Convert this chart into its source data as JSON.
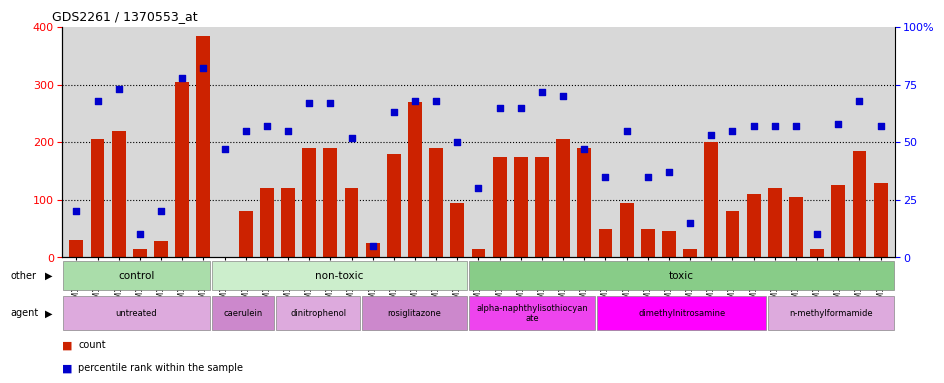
{
  "title": "GDS2261 / 1370553_at",
  "samples": [
    "GSM127079",
    "GSM127080",
    "GSM127081",
    "GSM127082",
    "GSM127083",
    "GSM127084",
    "GSM127085",
    "GSM127086",
    "GSM127087",
    "GSM127054",
    "GSM127055",
    "GSM127056",
    "GSM127057",
    "GSM127058",
    "GSM127064",
    "GSM127065",
    "GSM127066",
    "GSM127067",
    "GSM127068",
    "GSM127074",
    "GSM127075",
    "GSM127076",
    "GSM127077",
    "GSM127078",
    "GSM127049",
    "GSM127050",
    "GSM127051",
    "GSM127052",
    "GSM127053",
    "GSM127059",
    "GSM127060",
    "GSM127061",
    "GSM127062",
    "GSM127063",
    "GSM127069",
    "GSM127070",
    "GSM127071",
    "GSM127072",
    "GSM127073"
  ],
  "counts": [
    30,
    205,
    220,
    15,
    28,
    305,
    385,
    0,
    80,
    120,
    120,
    190,
    190,
    120,
    25,
    180,
    270,
    190,
    95,
    15,
    175,
    175,
    175,
    205,
    190,
    50,
    95,
    50,
    45,
    15,
    200,
    80,
    110,
    120,
    105,
    15,
    125,
    185,
    130
  ],
  "percentiles": [
    20,
    68,
    73,
    10,
    20,
    78,
    82,
    47,
    55,
    57,
    55,
    67,
    67,
    52,
    5,
    63,
    68,
    68,
    50,
    30,
    65,
    65,
    72,
    70,
    47,
    35,
    55,
    35,
    37,
    15,
    53,
    55,
    57,
    57,
    57,
    10,
    58,
    68,
    57
  ],
  "ylim_left": [
    0,
    400
  ],
  "ylim_right": [
    0,
    100
  ],
  "bar_color": "#cc2200",
  "dot_color": "#0000cc",
  "bg_color": "#d8d8d8",
  "other_groups": [
    {
      "label": "control",
      "start": 0,
      "end": 7,
      "color": "#aaddaa"
    },
    {
      "label": "non-toxic",
      "start": 7,
      "end": 19,
      "color": "#cceecc"
    },
    {
      "label": "toxic",
      "start": 19,
      "end": 39,
      "color": "#88cc88"
    }
  ],
  "agent_groups": [
    {
      "label": "untreated",
      "start": 0,
      "end": 7,
      "color": "#ddaadd"
    },
    {
      "label": "caerulein",
      "start": 7,
      "end": 10,
      "color": "#cc88cc"
    },
    {
      "label": "dinitrophenol",
      "start": 10,
      "end": 14,
      "color": "#ddaadd"
    },
    {
      "label": "rosiglitazone",
      "start": 14,
      "end": 19,
      "color": "#cc88cc"
    },
    {
      "label": "alpha-naphthylisothiocyan\nate",
      "start": 19,
      "end": 25,
      "color": "#ee44ee"
    },
    {
      "label": "dimethylnitrosamine",
      "start": 25,
      "end": 33,
      "color": "#ff00ff"
    },
    {
      "label": "n-methylformamide",
      "start": 33,
      "end": 39,
      "color": "#ddaadd"
    }
  ]
}
